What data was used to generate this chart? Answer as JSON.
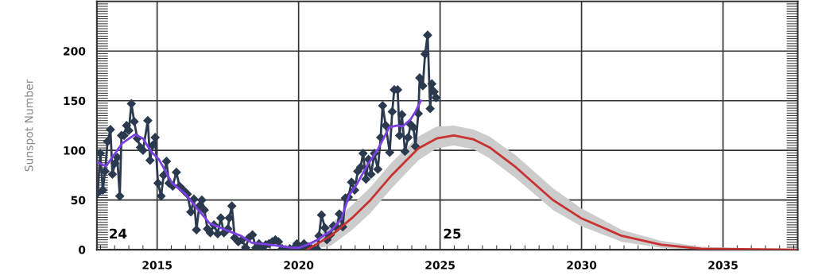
{
  "chart_data": {
    "type": "line",
    "ylabel": "Sunspot Number",
    "xlim": [
      2012.87,
      2037.64
    ],
    "ylim": [
      0,
      250
    ],
    "xticks": [
      2015,
      2020,
      2025,
      2030,
      2035
    ],
    "yticks": [
      0,
      50,
      100,
      150,
      200
    ],
    "grid": true,
    "legend": false,
    "annotations": [
      "24",
      "25"
    ],
    "series": [
      {
        "color": "#2b3a4f",
        "marker": "diamond",
        "x": [
          2012.9,
          2012.99,
          2013.08,
          2013.16,
          2013.25,
          2013.35,
          2013.42,
          2013.51,
          2013.59,
          2013.68,
          2013.74,
          2013.83,
          2013.92,
          2014.0,
          2014.09,
          2014.19,
          2014.3,
          2014.41,
          2014.5,
          2014.67,
          2014.75,
          2014.84,
          2014.93,
          2015.03,
          2015.14,
          2015.23,
          2015.33,
          2015.42,
          2015.55,
          2015.68,
          2015.79,
          2015.93,
          2016.07,
          2016.19,
          2016.3,
          2016.39,
          2016.49,
          2016.58,
          2016.67,
          2016.78,
          2016.88,
          2017.01,
          2017.14,
          2017.25,
          2017.36,
          2017.5,
          2017.55,
          2017.64,
          2017.74,
          2017.87,
          2018.0,
          2018.13,
          2018.24,
          2018.37,
          2018.49,
          2018.6,
          2018.73,
          2018.84,
          2018.95,
          2019.07,
          2019.18,
          2019.29,
          2019.42,
          2019.55,
          2019.69,
          2019.81,
          2019.94,
          2020.08,
          2020.19,
          2020.32,
          2020.45,
          2020.57,
          2020.67,
          2020.72,
          2020.81,
          2020.93,
          2021.0,
          2021.12,
          2021.23,
          2021.35,
          2021.44,
          2021.56,
          2021.65,
          2021.76,
          2021.87,
          2021.98,
          2022.09,
          2022.19,
          2022.28,
          2022.38,
          2022.47,
          2022.56,
          2022.68,
          2022.8,
          2022.9,
          2022.97,
          2023.08,
          2023.22,
          2023.31,
          2023.38,
          2023.5,
          2023.57,
          2023.65,
          2023.76,
          2023.87,
          2023.96,
          2024.06,
          2024.13,
          2024.23,
          2024.28,
          2024.39,
          2024.47,
          2024.56,
          2024.65,
          2024.71,
          2024.79,
          2024.86
        ],
        "values": [
          57,
          97,
          60,
          79,
          109,
          121,
          76,
          87,
          93,
          54,
          115,
          115,
          125,
          120,
          147,
          129,
          112,
          103,
          100,
          130,
          90,
          105,
          113,
          67,
          54,
          75,
          89,
          67,
          64,
          78,
          64,
          60,
          56,
          38,
          51,
          20,
          44,
          50,
          40,
          21,
          17,
          25,
          16,
          32,
          17,
          21,
          32,
          44,
          12,
          8,
          10,
          2,
          12,
          15,
          2,
          6,
          3,
          5,
          6,
          8,
          10,
          8,
          1,
          0,
          1,
          1,
          6,
          1,
          6,
          3,
          1,
          0,
          0,
          14,
          35,
          22,
          10,
          15,
          24,
          22,
          36,
          23,
          52,
          53,
          68,
          60,
          79,
          83,
          97,
          71,
          91,
          76,
          97,
          81,
          113,
          145,
          125,
          98,
          139,
          161,
          161,
          115,
          136,
          99,
          113,
          126,
          123,
          104,
          137,
          173,
          165,
          197,
          216,
          142,
          167,
          159,
          153
        ]
      },
      {
        "color": "#7b3fe4",
        "marker": "none",
        "x": [
          2012.9,
          2013.19,
          2013.76,
          2014.22,
          2014.5,
          2014.78,
          2015.06,
          2015.53,
          2016.0,
          2016.37,
          2016.84,
          2017.5,
          2017.96,
          2018.34,
          2018.99,
          2019.74,
          2020.02,
          2020.3,
          2020.67,
          2021.14,
          2021.51,
          2021.79,
          2022.08,
          2022.45,
          2022.82,
          2023.2,
          2023.48,
          2023.67,
          2023.95,
          2024.13,
          2024.32
        ],
        "values": [
          88,
          84,
          107,
          116,
          112,
          99,
          91,
          67,
          56,
          43,
          27,
          19,
          14,
          7,
          5,
          2,
          2,
          5,
          10,
          19,
          31,
          55,
          67,
          86,
          102,
          123,
          125,
          124,
          131,
          139,
          150
        ]
      },
      {
        "color": "#c83232",
        "marker": "none",
        "x": [
          2020.3,
          2021.14,
          2021.89,
          2022.54,
          2023.29,
          2024.23,
          2024.88,
          2025.49,
          2026.19,
          2026.75,
          2027.68,
          2028.99,
          2029.97,
          2031.42,
          2032.82,
          2034.23,
          2037.6
        ],
        "values": [
          0,
          14,
          32,
          50,
          75,
          102,
          112,
          115,
          111,
          103,
          83,
          50,
          32,
          14,
          5,
          1,
          0
        ],
        "lower": [
          0,
          4,
          20,
          37,
          62,
          90,
          102,
          105,
          101,
          92,
          72,
          40,
          24,
          8,
          2,
          0,
          0
        ],
        "upper": [
          2,
          26,
          45,
          63,
          88,
          114,
          124,
          125,
          121,
          114,
          95,
          62,
          42,
          20,
          9,
          3,
          0
        ]
      }
    ]
  }
}
